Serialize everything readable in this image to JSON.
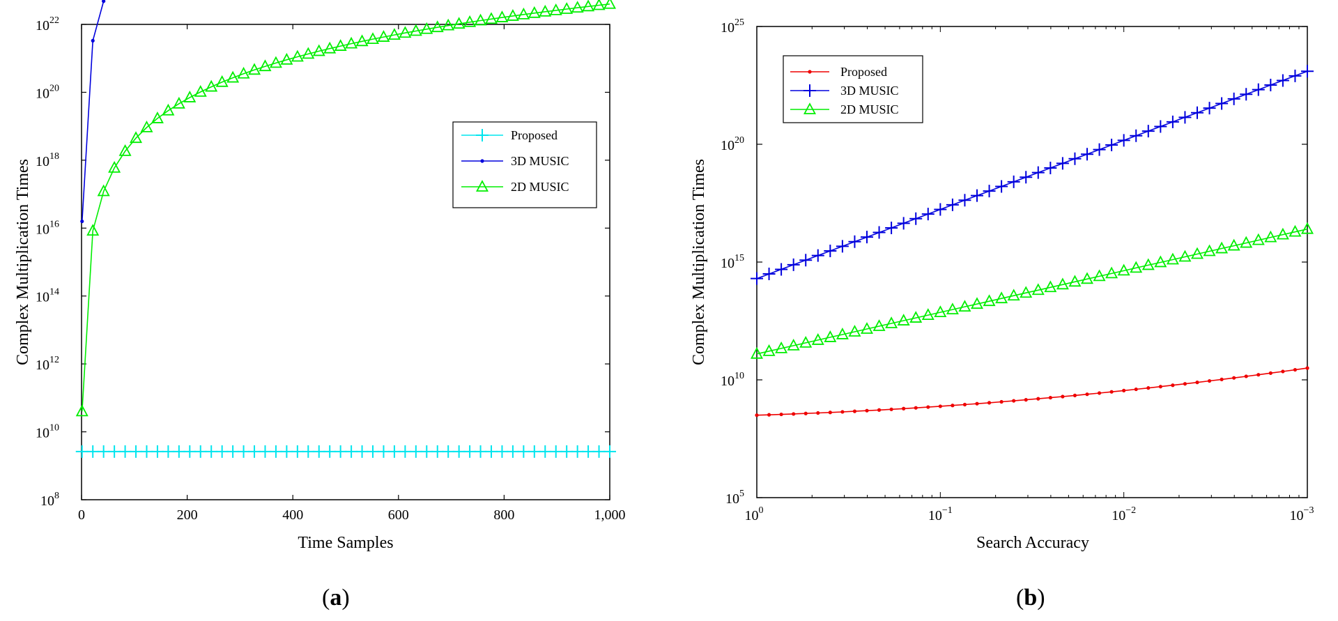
{
  "chart_data": [
    {
      "type": "line",
      "panel_label": "a",
      "xlabel": "Time Samples",
      "ylabel": "Complex Multiplication Times",
      "xlim": [
        0,
        1000
      ],
      "ylim_log10": [
        8,
        22
      ],
      "yscale": "log",
      "x_tick_labels": [
        "0",
        "200",
        "400",
        "600",
        "800",
        "1,000"
      ],
      "x_tick_values": [
        0,
        200,
        400,
        600,
        800,
        1000
      ],
      "y_tick_bases": [
        "10",
        "10",
        "10",
        "10",
        "10",
        "10",
        "10",
        "10"
      ],
      "y_tick_exponents": [
        "8",
        "10",
        "12",
        "14",
        "16",
        "18",
        "20",
        "22"
      ],
      "legend": {
        "placement": "upper-right",
        "entries": [
          "Proposed",
          "3D MUSIC",
          "2D MUSIC"
        ]
      },
      "series": [
        {
          "name": "Proposed",
          "color": "#00e5ee",
          "marker": "plus",
          "x_start": 1,
          "x_end": 1000,
          "count": 50,
          "log10_values": {
            "type": "constant",
            "value": 9.42
          }
        },
        {
          "name": "3D MUSIC",
          "color": "#0000dd",
          "marker": "dot",
          "x_start": 1,
          "x_end": 1000,
          "count": 50,
          "log10_values": {
            "type": "log_growth",
            "base": 16.2,
            "slope": 4.0
          }
        },
        {
          "name": "2D MUSIC",
          "color": "#00ee00",
          "marker": "triangle",
          "x_start": 1,
          "x_end": 1000,
          "count": 50,
          "log10_values": {
            "type": "log_growth",
            "base": 10.6,
            "slope": 4.0
          }
        }
      ]
    },
    {
      "type": "line",
      "panel_label": "b",
      "xlabel": "Search Accuracy",
      "ylabel": "Complex Multiplication Times",
      "xscale": "log",
      "xlim_log10": [
        0,
        -3
      ],
      "ylim_log10": [
        5,
        25
      ],
      "yscale": "log",
      "x_tick_bases": [
        "10",
        "10",
        "10",
        "10"
      ],
      "x_tick_exponents": [
        "0",
        "−1",
        "−2",
        "−3"
      ],
      "y_tick_bases": [
        "10",
        "10",
        "10",
        "10",
        "10"
      ],
      "y_tick_exponents": [
        "5",
        "10",
        "15",
        "20",
        "25"
      ],
      "legend": {
        "placement": "upper-left",
        "entries": [
          "Proposed",
          "3D MUSIC",
          "2D MUSIC"
        ]
      },
      "series": [
        {
          "name": "Proposed",
          "color": "#ee0000",
          "marker": "dot",
          "count": 46,
          "log10_values": {
            "type": "quadratic",
            "start": 8.5,
            "end": 10.5,
            "curvature": 0.65
          }
        },
        {
          "name": "3D MUSIC",
          "color": "#0000dd",
          "marker": "plus",
          "count": 46,
          "log10_values": {
            "type": "linear",
            "start": 14.3,
            "end": 23.1
          }
        },
        {
          "name": "2D MUSIC",
          "color": "#00ee00",
          "marker": "triangle",
          "count": 46,
          "log10_values": {
            "type": "linear",
            "start": 11.1,
            "end": 16.4
          }
        }
      ]
    }
  ]
}
